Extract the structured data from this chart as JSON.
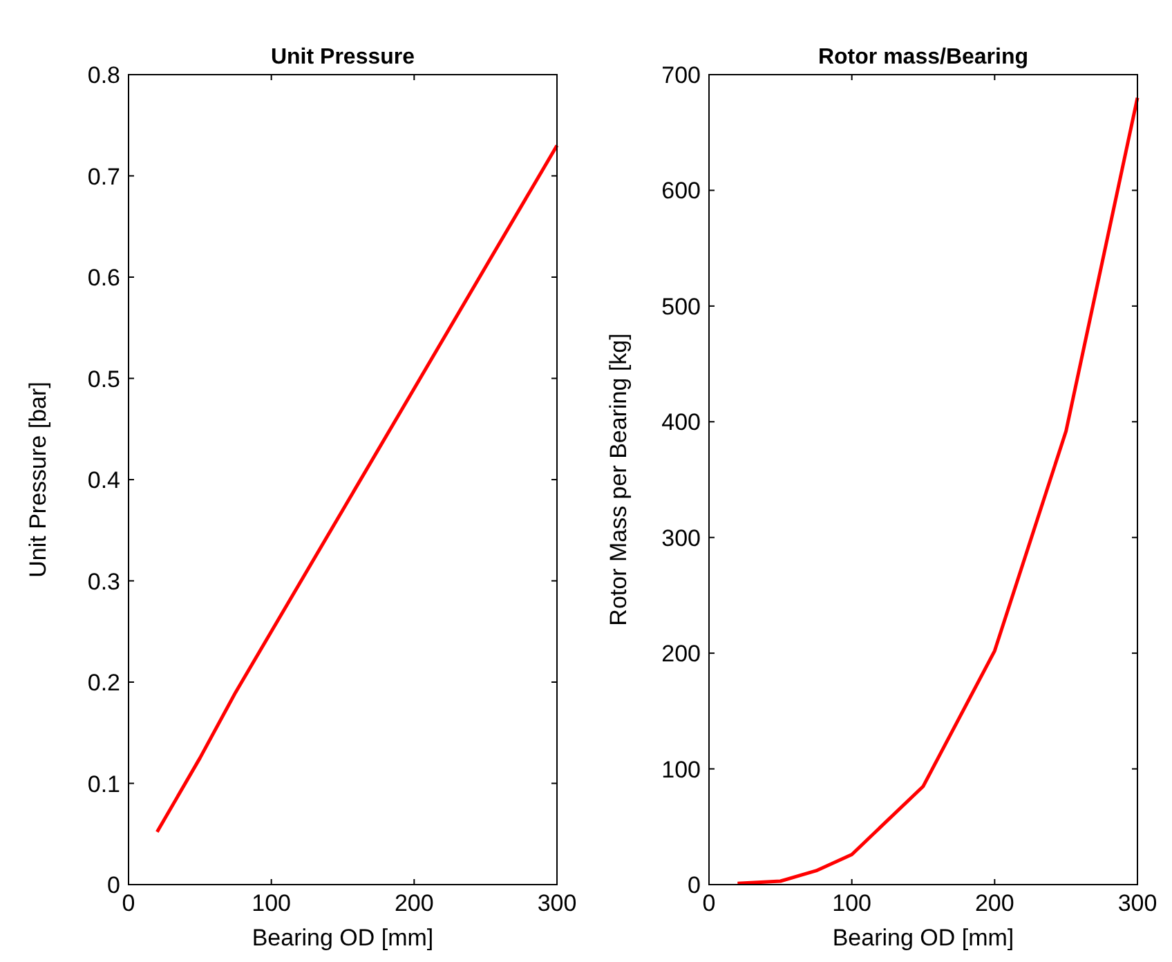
{
  "chart_data": [
    {
      "type": "line",
      "title": "Unit Pressure",
      "xlabel": "Bearing OD [mm]",
      "ylabel": "Unit Pressure [bar]",
      "x": [
        20,
        50,
        75,
        100,
        150,
        200,
        250,
        300
      ],
      "series": [
        {
          "color": "#ff0000",
          "values": [
            0.052,
            0.125,
            0.19,
            0.25,
            0.37,
            0.49,
            0.61,
            0.73
          ]
        }
      ],
      "xlim": [
        0,
        300
      ],
      "xticks": [
        0,
        100,
        200,
        300
      ],
      "ylim": [
        0,
        0.8
      ],
      "yticks": [
        0,
        0.1,
        0.2,
        0.3,
        0.4,
        0.5,
        0.6,
        0.7,
        0.8
      ],
      "grid": false
    },
    {
      "type": "line",
      "title": "Rotor mass/Bearing",
      "xlabel": "Bearing OD [mm]",
      "ylabel": "Rotor Mass per Bearing [kg]",
      "x": [
        20,
        50,
        75,
        100,
        150,
        200,
        250,
        300
      ],
      "series": [
        {
          "color": "#ff0000",
          "values": [
            1,
            3,
            12,
            26,
            85,
            202,
            392,
            680
          ]
        }
      ],
      "xlim": [
        0,
        300
      ],
      "xticks": [
        0,
        100,
        200,
        300
      ],
      "ylim": [
        0,
        700
      ],
      "yticks": [
        0,
        100,
        200,
        300,
        400,
        500,
        600,
        700
      ],
      "grid": false
    }
  ]
}
